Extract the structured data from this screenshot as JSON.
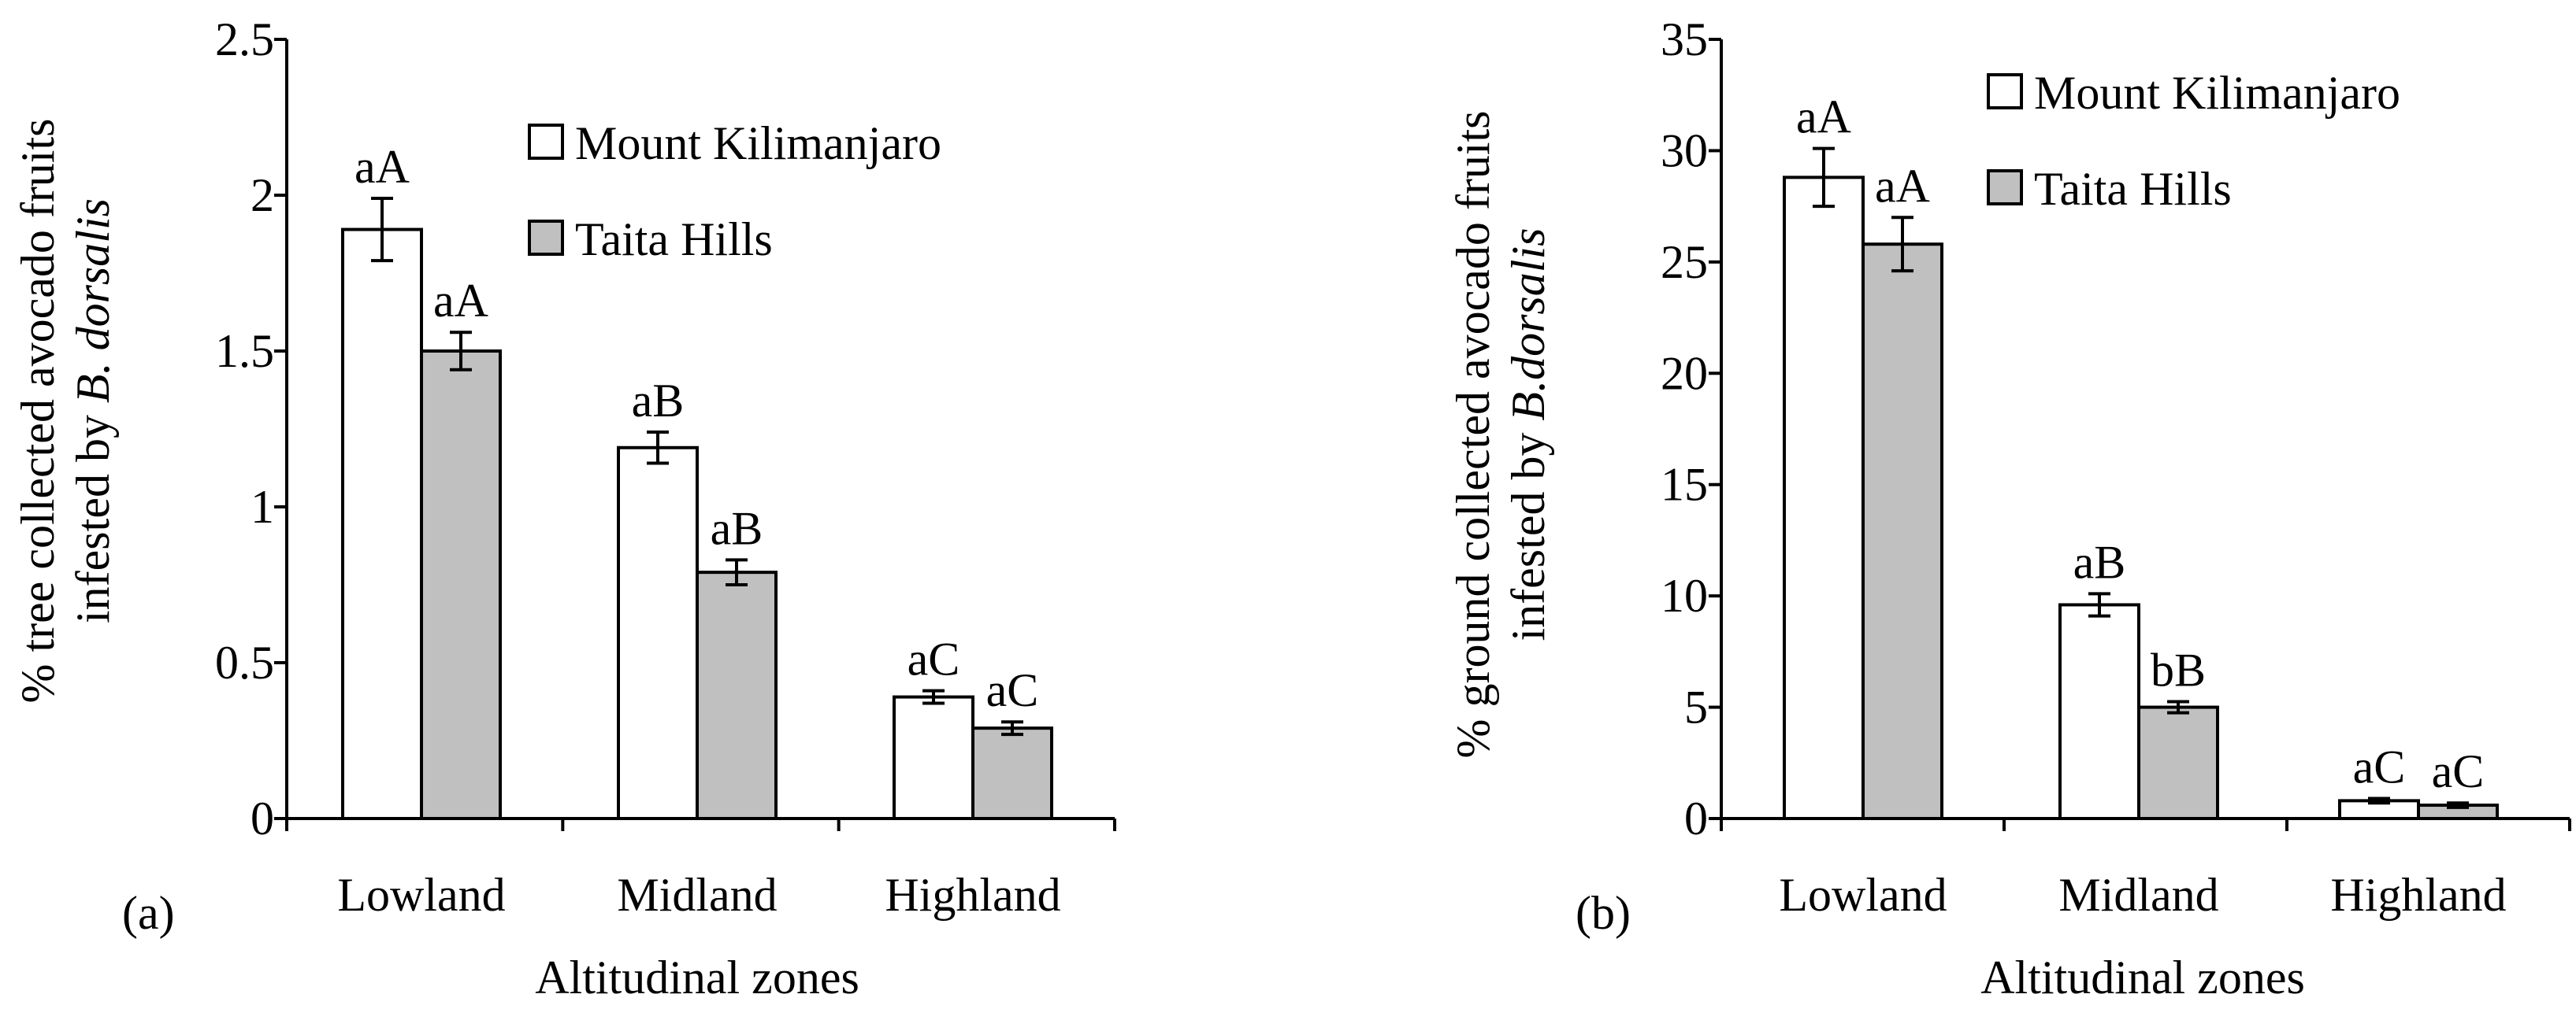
{
  "chart_data": [
    {
      "type": "bar",
      "panel_label": "(a)",
      "categories": [
        "Lowland",
        "Midland",
        "Highland"
      ],
      "series": [
        {
          "name": "Mount Kilimanjaro",
          "color": "#ffffff",
          "values": [
            1.89,
            1.19,
            0.39
          ],
          "errors": [
            0.1,
            0.05,
            0.02
          ],
          "labels": [
            "aA",
            "aB",
            "aC"
          ]
        },
        {
          "name": "Taita Hills",
          "color": "#c0c0c0",
          "values": [
            1.5,
            0.79,
            0.29
          ],
          "errors": [
            0.06,
            0.04,
            0.02
          ],
          "labels": [
            "aA",
            "aB",
            "aC"
          ]
        }
      ],
      "xlabel": "Altitudinal zones",
      "ylabel_line1": "% tree collected avocado fruits",
      "ylabel_line2_prefix": "infested by ",
      "ylabel_line2_species": "B. dorsalis",
      "ylim": [
        0,
        2.5
      ],
      "yticks": [
        "0",
        "0.5",
        "1",
        "1.5",
        "2",
        "2.5"
      ],
      "legend_position": "top-right"
    },
    {
      "type": "bar",
      "panel_label": "(b)",
      "categories": [
        "Lowland",
        "Midland",
        "Highland"
      ],
      "series": [
        {
          "name": "Mount Kilimanjaro",
          "color": "#ffffff",
          "values": [
            28.8,
            9.6,
            0.8
          ],
          "errors": [
            1.3,
            0.5,
            0.1
          ],
          "labels": [
            "aA",
            "aB",
            "aC"
          ]
        },
        {
          "name": "Taita Hills",
          "color": "#c0c0c0",
          "values": [
            25.8,
            5.0,
            0.6
          ],
          "errors": [
            1.2,
            0.25,
            0.1
          ],
          "labels": [
            "aA",
            "bB",
            "aC"
          ]
        }
      ],
      "xlabel": "Altitudinal zones",
      "ylabel_line1": "% ground collected avocado fruits",
      "ylabel_line2_prefix": "infested by ",
      "ylabel_line2_species": "B.dorsalis",
      "ylim": [
        0,
        35
      ],
      "yticks": [
        "0",
        "5",
        "10",
        "15",
        "20",
        "25",
        "30",
        "35"
      ],
      "legend_position": "top-right"
    }
  ]
}
